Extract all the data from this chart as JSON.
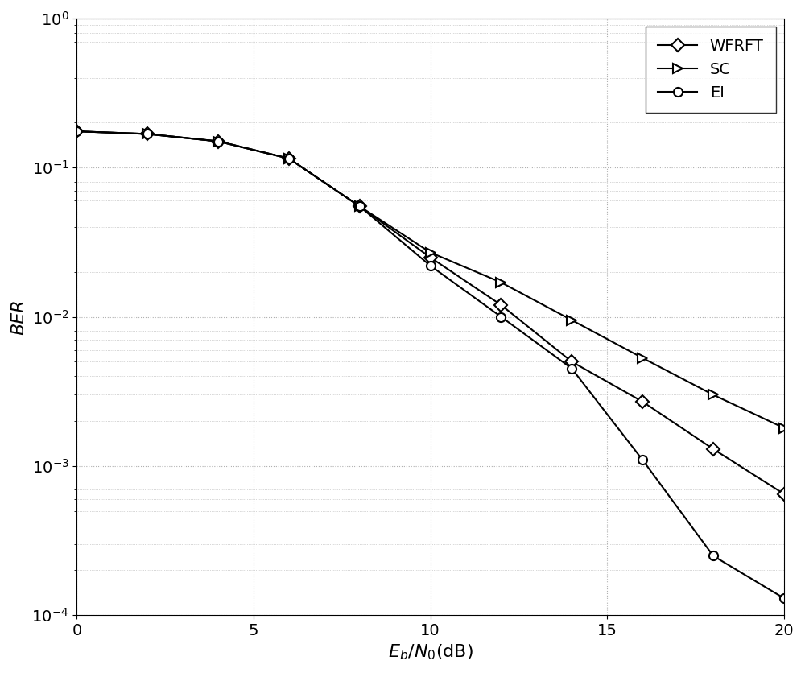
{
  "x": [
    0,
    2,
    4,
    6,
    8,
    10,
    12,
    14,
    16,
    18,
    20
  ],
  "WFRFT": [
    0.175,
    0.168,
    0.15,
    0.115,
    0.055,
    0.025,
    0.012,
    0.005,
    0.0027,
    0.0013,
    0.00065
  ],
  "SC": [
    0.175,
    0.168,
    0.15,
    0.115,
    0.055,
    0.027,
    0.017,
    0.0095,
    0.0053,
    0.003,
    0.0018
  ],
  "EI": [
    0.175,
    0.168,
    0.15,
    0.115,
    0.055,
    0.022,
    0.01,
    0.0045,
    0.0011,
    0.00025,
    0.00013
  ],
  "xlabel": "E_b/N_0(dB)",
  "ylabel": "BER",
  "xlim": [
    0,
    20
  ],
  "ylim_log": [
    -4,
    0
  ],
  "legend_labels": [
    "WFRFT",
    "SC",
    "EI"
  ],
  "line_color": "#000000",
  "grid_color": "#b0b0b0",
  "marker_WFRFT": "D",
  "marker_SC": ">",
  "marker_EI": "o",
  "linewidth": 1.5,
  "markersize": 8,
  "markeredgewidth": 1.5,
  "background_color": "#ffffff",
  "xticks": [
    0,
    5,
    10,
    15,
    20
  ],
  "tick_fontsize": 14,
  "label_fontsize": 16,
  "legend_fontsize": 14
}
